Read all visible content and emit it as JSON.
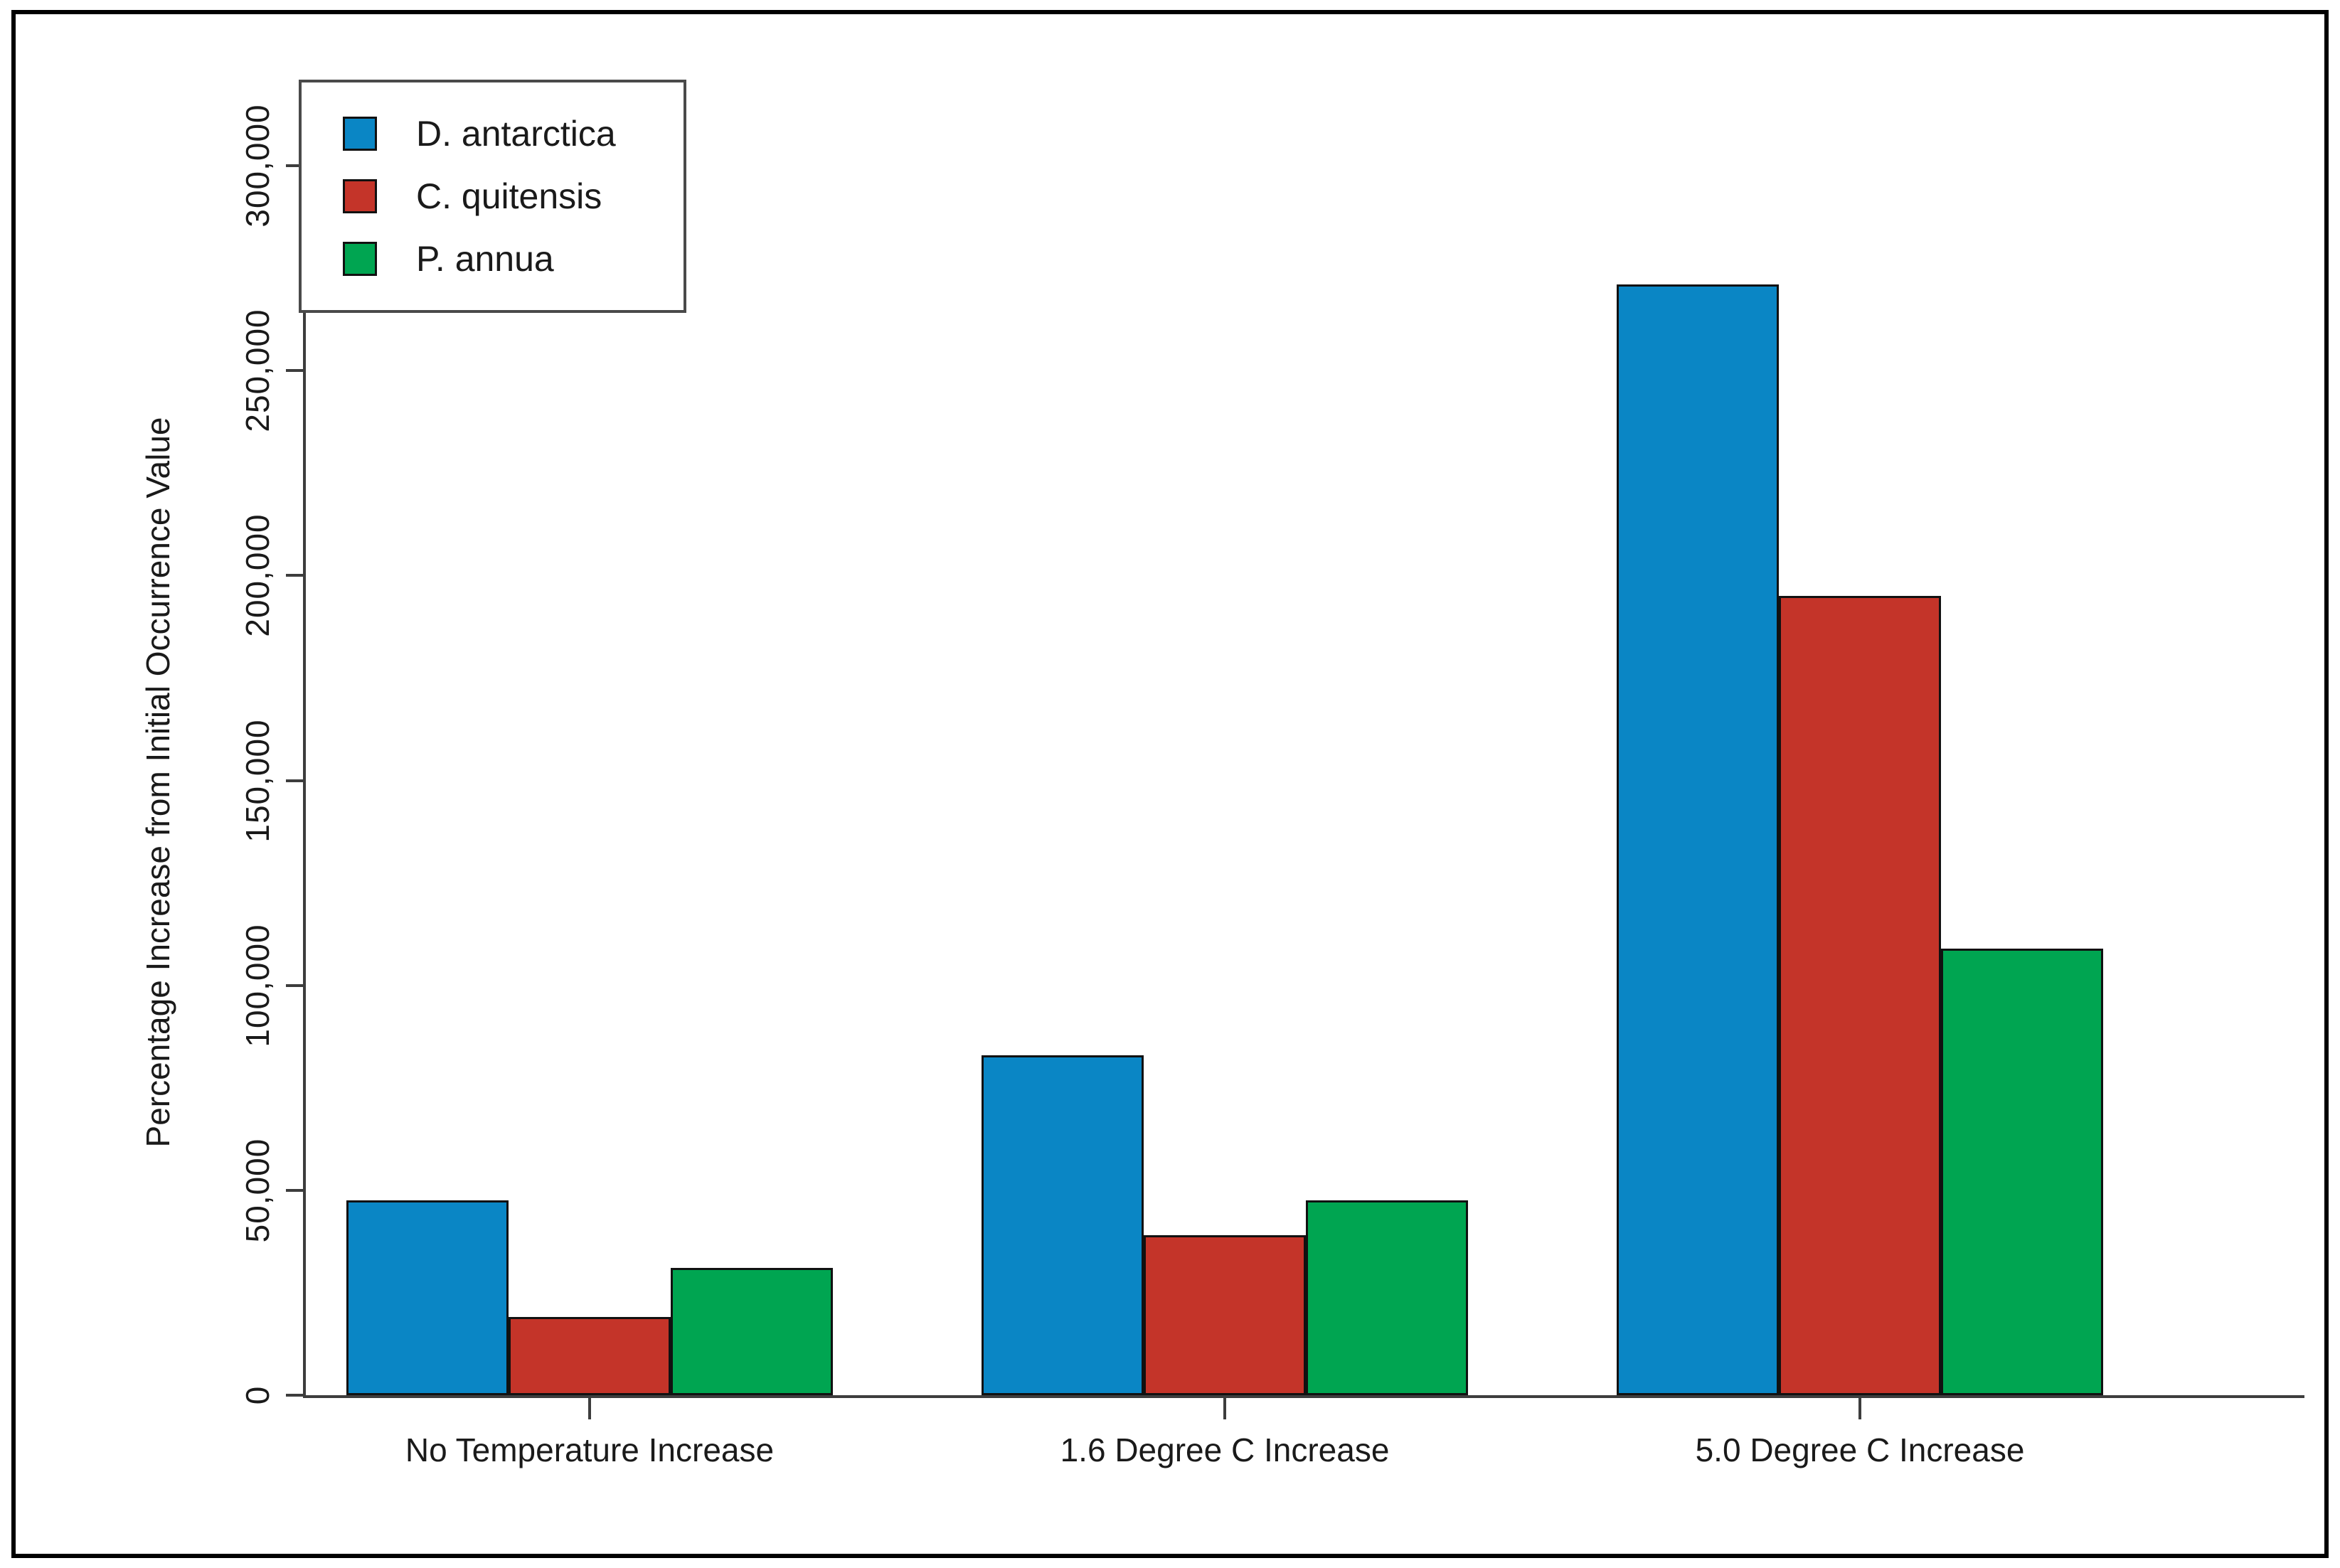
{
  "figure": {
    "background": "#ffffff",
    "frame_color": "#000000",
    "axis_color": "#3d3d3d",
    "text_color": "#1a1a1a"
  },
  "chart_data": {
    "type": "bar",
    "title": "",
    "categories": [
      "No Temperature Increase",
      "1.6 Degree C Increase",
      "5.0 Degree C Increase"
    ],
    "series": [
      {
        "name": "D. antarctica",
        "color": "#0a86c5",
        "values": [
          47500,
          83000,
          271000
        ]
      },
      {
        "name": "C. quitensis",
        "color": "#c43429",
        "values": [
          19000,
          39000,
          195000
        ]
      },
      {
        "name": "P. annua",
        "color": "#00a551",
        "values": [
          31000,
          47500,
          109000
        ]
      }
    ],
    "xlabel": "",
    "ylabel": "Percentage Increase from Initial Occurrence Value",
    "ylim": [
      0,
      300000
    ],
    "ytick_step": 50000,
    "ytick_labels": [
      "0",
      "50,000",
      "100,000",
      "150,000",
      "200,000",
      "250,000",
      "300,000"
    ],
    "grid": false,
    "legend_position": "top-left",
    "bar_edge_color": "#111111"
  }
}
